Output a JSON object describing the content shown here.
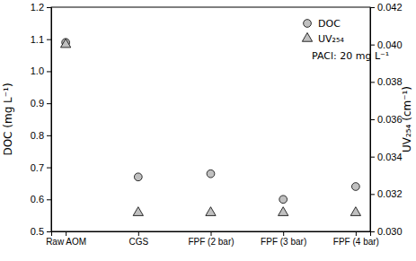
{
  "chart_data": {
    "type": "scatter",
    "categories": [
      "Raw AOM",
      "CGS",
      "FPF (2 bar)",
      "FPF (3 bar)",
      "FPF (4 bar)"
    ],
    "series": [
      {
        "name": "DOC",
        "color": "#c0c0c0",
        "marker": "circle",
        "values": [
          1.09,
          0.67,
          0.68,
          0.6,
          0.64
        ]
      },
      {
        "name": "UV₂₅₄",
        "color": "#c0c0c0",
        "marker": "triangle",
        "axis": "y2",
        "values": [
          0.04,
          0.031,
          0.031,
          0.031,
          0.031
        ]
      }
    ],
    "y_label": "DOC (mg L⁻¹)",
    "y2_label": "UV₂₅₄ (cm⁻¹)",
    "annotations": [
      "PACl: 20 mg L⁻¹"
    ],
    "ylim": [
      0.5,
      1.2
    ],
    "yticks": [
      0.5,
      0.6,
      0.7,
      0.8,
      0.9,
      {
        "value": 1.0,
        "label": "1.0"
      },
      1.1,
      1.2
    ],
    "y2lim": [
      0.03,
      0.042
    ],
    "y2ticks": [
      {
        "value": 0.03,
        "label": "0.030"
      },
      {
        "value": 0.032,
        "label": "0.032"
      },
      {
        "value": 0.034,
        "label": "0.034"
      },
      {
        "value": 0.036,
        "label": "0.036"
      },
      {
        "value": 0.038,
        "label": "0.038"
      },
      {
        "value": 0.04,
        "label": "0.040"
      },
      {
        "value": 0.042,
        "label": "0.042"
      }
    ],
    "legend": "upper right",
    "grid": false
  }
}
